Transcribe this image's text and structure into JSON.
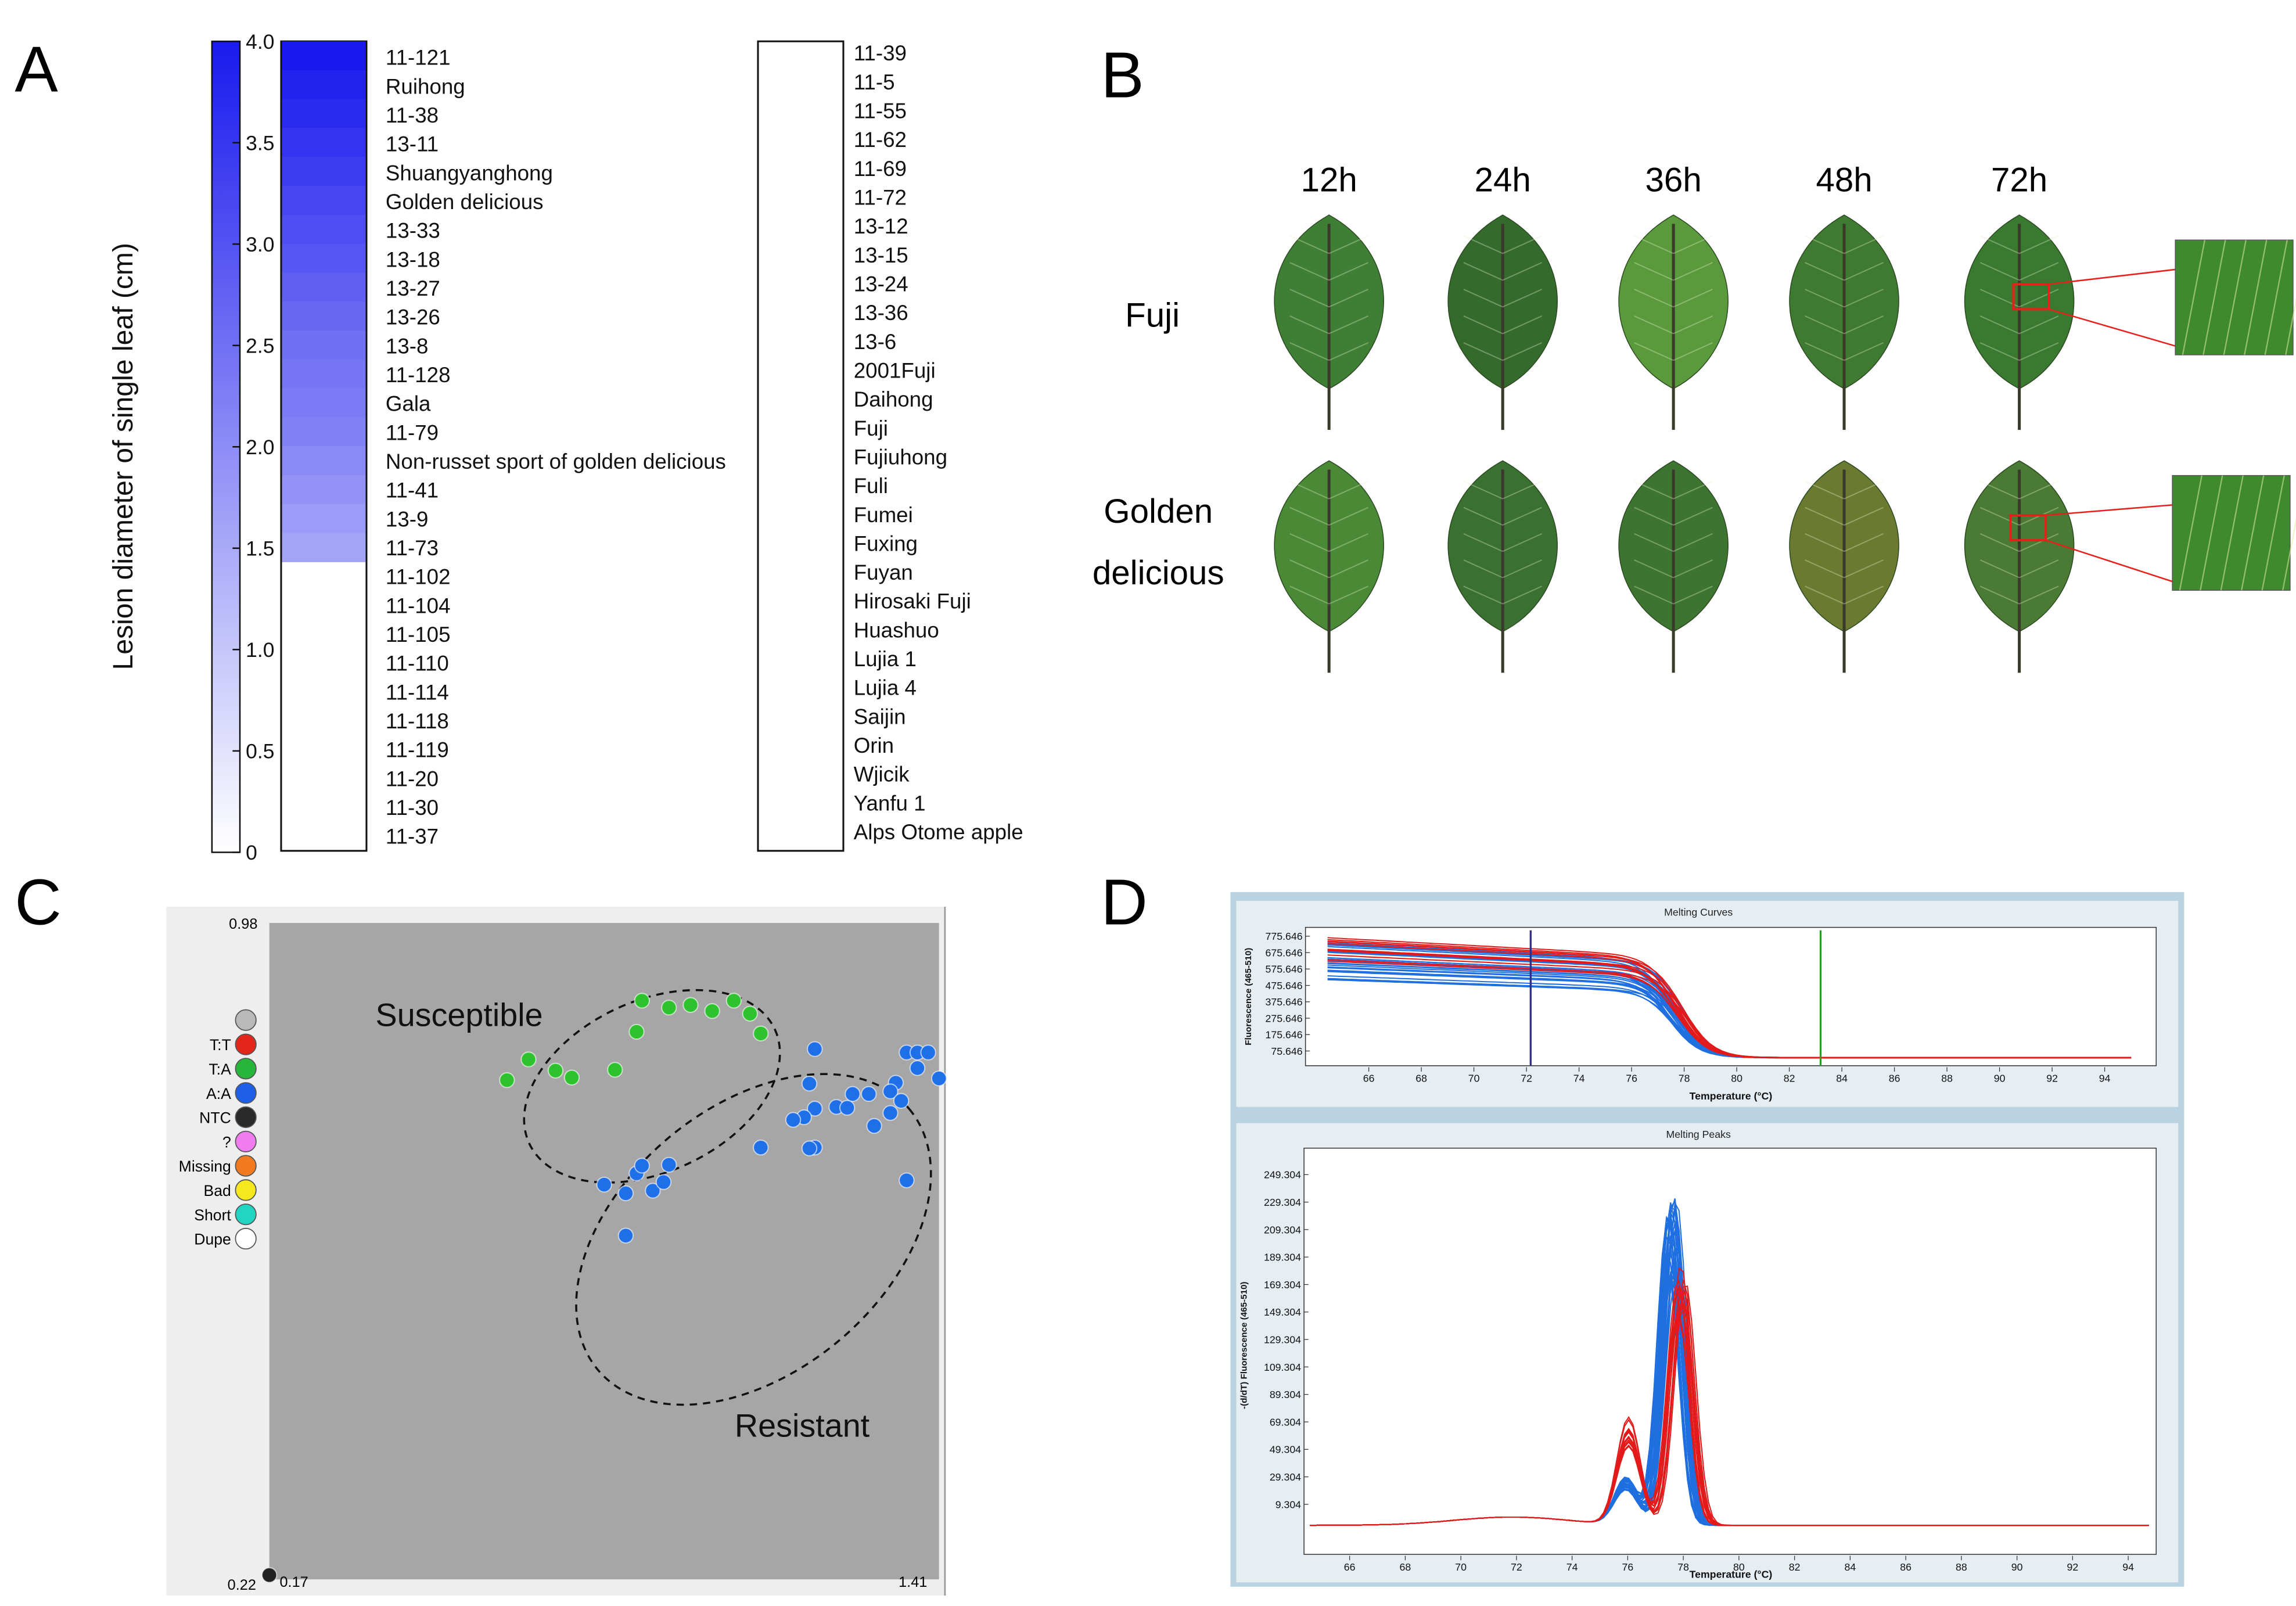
{
  "panels": {
    "a": "A",
    "b": "B",
    "c": "C",
    "d": "D"
  },
  "panel_a": {
    "y_axis_label": "Lesion diameter of single leaf  (cm)",
    "scale_ticks": [
      "0",
      "0.5",
      "1.0",
      "1.5",
      "2.0",
      "2.5",
      "3.0",
      "3.5",
      "4.0"
    ],
    "column1": [
      "11-121",
      "Ruihong",
      "11-38",
      "13-11",
      "Shuangyanghong",
      "Golden delicious",
      "13-33",
      "13-18",
      "13-27",
      "13-26",
      "13-8",
      "11-128",
      "Gala",
      "11-79",
      "Non-russet sport of golden delicious",
      "11-41",
      "13-9",
      "11-73",
      "11-102",
      "11-104",
      "11-105",
      "11-110",
      "11-114",
      "11-118",
      "11-119",
      "11-20",
      "11-30",
      "11-37"
    ],
    "column2": [
      "11-39",
      "11-5",
      "11-55",
      "11-62",
      "11-69",
      "11-72",
      "13-12",
      "13-15",
      "13-24",
      "13-36",
      "13-6",
      "2001Fuji",
      "Daihong",
      "Fuji",
      "Fujiuhong",
      "Fuli",
      "Fumei",
      "Fuxing",
      "Fuyan",
      "Hirosaki Fuji",
      "Huashuo",
      "Lujia 1",
      "Lujia 4",
      "Saijin",
      "Orin",
      "Wjicik",
      "Yanfu 1",
      "Alps Otome apple"
    ],
    "column1_values": [
      4.0,
      3.85,
      3.7,
      3.55,
      3.4,
      3.25,
      3.1,
      2.95,
      2.8,
      2.65,
      2.5,
      2.4,
      2.3,
      2.2,
      2.05,
      1.9,
      1.75,
      1.6,
      0,
      0,
      0,
      0,
      0,
      0,
      0,
      0,
      0,
      0
    ],
    "color_low": "#ffffff",
    "color_high": "#1a1aee"
  },
  "panel_b": {
    "times": [
      "12h",
      "24h",
      "36h",
      "48h",
      "72h"
    ],
    "cultivars": [
      "Fuji",
      "Golden",
      "delicious"
    ],
    "leaf_colors_row1": [
      "#3f7f35",
      "#356a2d",
      "#5a9a3c",
      "#3e7a31",
      "#3a7a30"
    ],
    "leaf_colors_row2": [
      "#4a8a37",
      "#3a7030",
      "#3d7430",
      "#6b7a30",
      "#4a7a33"
    ],
    "highlight_color": "#e8201c"
  },
  "panel_c": {
    "axis": {
      "y_top": "0.98",
      "y_bottom": "0.22",
      "x_left": "0.17",
      "x_right": "1.41"
    },
    "legend": [
      {
        "label": "",
        "color": "#b9b9b9"
      },
      {
        "label": "T:T",
        "color": "#e2261b"
      },
      {
        "label": "T:A",
        "color": "#27b53a"
      },
      {
        "label": "A:A",
        "color": "#1f5fe8"
      },
      {
        "label": "NTC",
        "color": "#2a2a2a"
      },
      {
        "label": "?",
        "color": "#f07cf0"
      },
      {
        "label": "Missing",
        "color": "#f17a20"
      },
      {
        "label": "Bad",
        "color": "#f5e81e"
      },
      {
        "label": "Short",
        "color": "#20d6c2"
      },
      {
        "label": "Dupe",
        "color": "#ffffff"
      }
    ],
    "clusters": {
      "susceptible": "Susceptible",
      "resistant": "Resistant"
    },
    "colors": {
      "plot_bg": "#a6a6a6",
      "tv": "#2ec22e",
      "aa": "#1e6fe8",
      "ntc": "#222222"
    }
  },
  "panel_d": {
    "melting_curves": {
      "title": "Melting Curves",
      "y_label": "Fluorescence (465-510)",
      "x_label": "Temperature (°C)",
      "y_ticks": [
        "775.646",
        "675.646",
        "575.646",
        "475.646",
        "375.646",
        "275.646",
        "175.646",
        "75.646"
      ],
      "x_ticks": [
        "66",
        "68",
        "70",
        "72",
        "74",
        "76",
        "78",
        "80",
        "82",
        "84",
        "86",
        "88",
        "90",
        "92",
        "94"
      ]
    },
    "melting_peaks": {
      "title": "Melting Peaks",
      "y_label": "-(d/dT) Fluorescence (465-510)",
      "x_label": "Temperature (°C)",
      "y_ticks": [
        "249.304",
        "229.304",
        "209.304",
        "189.304",
        "169.304",
        "149.304",
        "129.304",
        "109.304",
        "89.304",
        "69.304",
        "49.304",
        "29.304",
        "9.304"
      ],
      "x_ticks": [
        "66",
        "68",
        "70",
        "72",
        "74",
        "76",
        "78",
        "80",
        "82",
        "84",
        "86",
        "88",
        "90",
        "92",
        "94"
      ]
    },
    "colors": {
      "frame_bg": "#b9d3e3",
      "red_series": "#e31a1a",
      "blue_series": "#1f6fe0",
      "cursor_left": "#2e2e8a",
      "cursor_right": "#1aa51a"
    }
  },
  "chart_data": {
    "type": "scatter",
    "title": "",
    "xlim": [
      0.17,
      1.41
    ],
    "ylim": [
      0.22,
      0.98
    ],
    "series": [
      {
        "name": "T:A",
        "x": [
          0.86,
          0.91,
          0.95,
          0.99,
          1.03,
          1.06,
          1.08,
          0.85,
          0.65,
          0.81,
          0.7,
          0.73,
          0.61
        ],
        "y": [
          0.89,
          0.882,
          0.885,
          0.878,
          0.89,
          0.875,
          0.852,
          0.854,
          0.822,
          0.81,
          0.809,
          0.801,
          0.798
        ]
      },
      {
        "name": "A:A",
        "x": [
          1.18,
          1.35,
          1.37,
          1.39,
          1.37,
          1.41,
          1.17,
          1.33,
          1.25,
          1.28,
          1.32,
          1.34,
          1.18,
          1.22,
          1.24,
          1.16,
          1.14,
          1.32,
          1.29,
          1.08,
          1.18,
          1.17,
          1.35,
          0.85,
          0.86,
          0.91,
          0.79,
          0.83,
          0.88,
          0.9,
          0.83
        ],
        "y": [
          0.834,
          0.83,
          0.83,
          0.83,
          0.812,
          0.8,
          0.794,
          0.795,
          0.782,
          0.782,
          0.785,
          0.774,
          0.765,
          0.767,
          0.766,
          0.755,
          0.752,
          0.76,
          0.745,
          0.72,
          0.72,
          0.719,
          0.682,
          0.69,
          0.699,
          0.7,
          0.677,
          0.667,
          0.67,
          0.68,
          0.618
        ]
      },
      {
        "name": "NTC",
        "x": [
          0.17
        ],
        "y": [
          0.225
        ]
      }
    ]
  }
}
